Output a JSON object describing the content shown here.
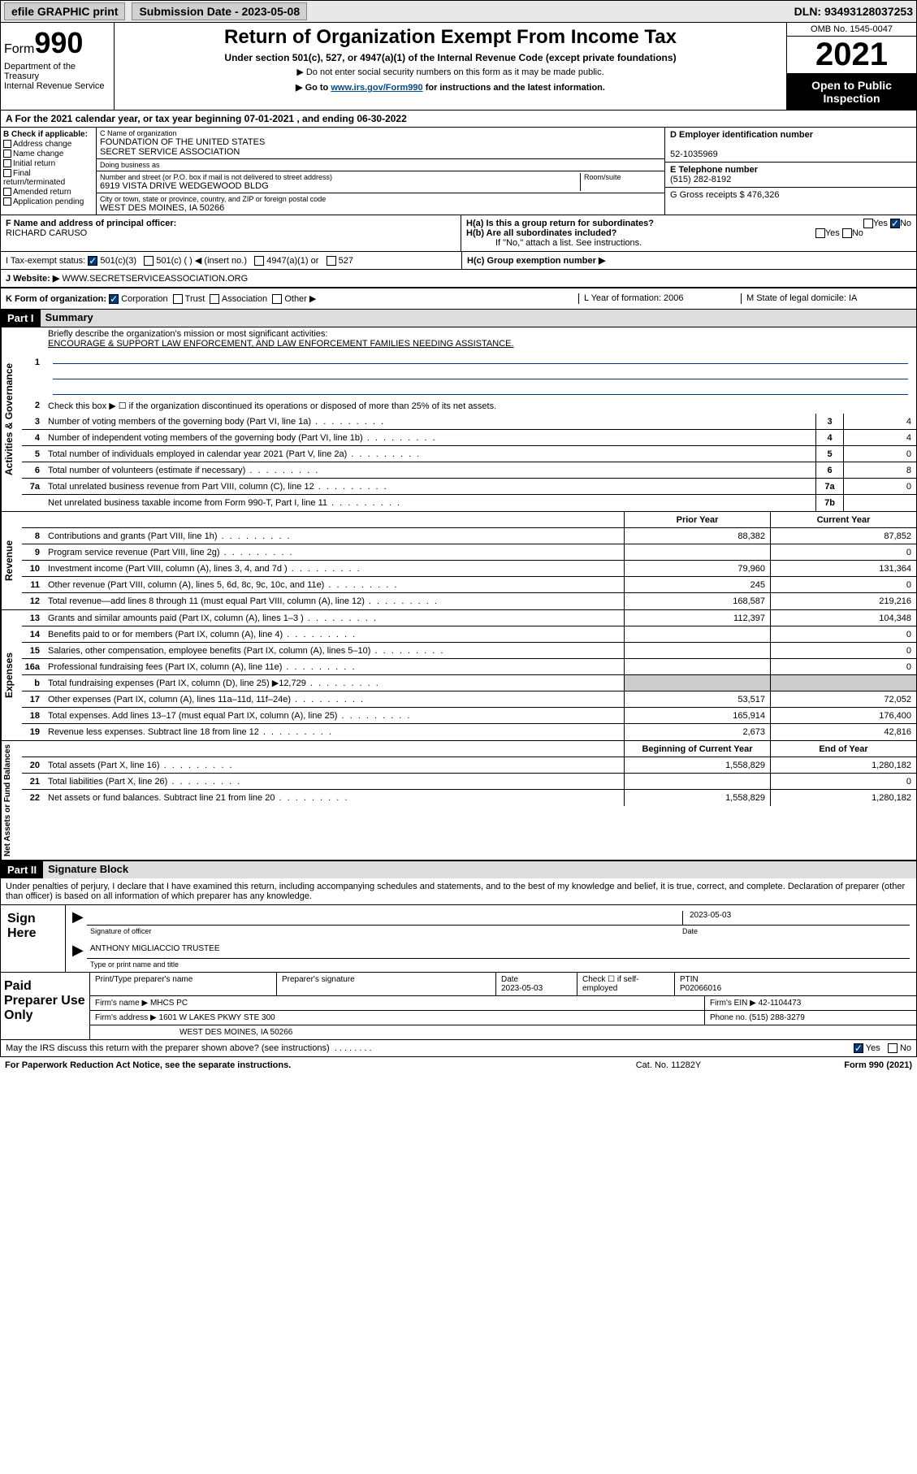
{
  "topbar": {
    "efile": "efile GRAPHIC print",
    "submission": "Submission Date - 2023-05-08",
    "dln": "DLN: 93493128037253"
  },
  "header": {
    "form_prefix": "Form",
    "form_num": "990",
    "title": "Return of Organization Exempt From Income Tax",
    "sub1": "Under section 501(c), 527, or 4947(a)(1) of the Internal Revenue Code (except private foundations)",
    "sub2": "▶ Do not enter social security numbers on this form as it may be made public.",
    "sub3_pre": "▶ Go to ",
    "sub3_link": "www.irs.gov/Form990",
    "sub3_post": " for instructions and the latest information.",
    "dept": "Department of the Treasury\nInternal Revenue Service",
    "omb": "OMB No. 1545-0047",
    "year": "2021",
    "open": "Open to Public Inspection"
  },
  "sectionA": "A For the 2021 calendar year, or tax year beginning 07-01-2021  , and ending 06-30-2022",
  "colB": {
    "title": "B Check if applicable:",
    "items": [
      "Address change",
      "Name change",
      "Initial return",
      "Final return/terminated",
      "Amended return",
      "Application pending"
    ]
  },
  "colC": {
    "name_lbl": "C Name of organization",
    "name": "FOUNDATION OF THE UNITED STATES\nSECRET SERVICE ASSOCIATION",
    "dba_lbl": "Doing business as",
    "dba": "",
    "addr_lbl": "Number and street (or P.O. box if mail is not delivered to street address)",
    "room_lbl": "Room/suite",
    "addr": "6919 VISTA DRIVE WEDGEWOOD BLDG",
    "city_lbl": "City or town, state or province, country, and ZIP or foreign postal code",
    "city": "WEST DES MOINES, IA  50266"
  },
  "colD": {
    "ein_lbl": "D Employer identification number",
    "ein": "52-1035969",
    "phone_lbl": "E Telephone number",
    "phone": "(515) 282-8192",
    "gross_lbl": "G Gross receipts $ ",
    "gross": "476,326"
  },
  "rowF": {
    "lbl": "F Name and address of principal officer:",
    "name": "RICHARD CARUSO",
    "ha": "H(a)  Is this a group return for subordinates?",
    "hb": "H(b)  Are all subordinates included?",
    "hb_note": "If \"No,\" attach a list. See instructions.",
    "hc": "H(c)  Group exemption number ▶",
    "yes": "Yes",
    "no": "No"
  },
  "rowI": {
    "lbl": "I   Tax-exempt status:",
    "opt1": "501(c)(3)",
    "opt2": "501(c) (  ) ◀ (insert no.)",
    "opt3": "4947(a)(1) or",
    "opt4": "527"
  },
  "rowJ": {
    "lbl": "J   Website: ▶ ",
    "val": "WWW.SECRETSERVICEASSOCIATION.ORG"
  },
  "rowK": {
    "lbl": "K Form of organization:",
    "opts": [
      "Corporation",
      "Trust",
      "Association",
      "Other ▶"
    ],
    "L": "L Year of formation: 2006",
    "M": "M State of legal domicile: IA"
  },
  "part1": {
    "hdr": "Part I",
    "title": "Summary"
  },
  "summary": {
    "line1_lbl": "Briefly describe the organization's mission or most significant activities:",
    "line1_val": "ENCOURAGE & SUPPORT LAW ENFORCEMENT, AND LAW ENFORCEMENT FAMILIES NEEDING ASSISTANCE.",
    "line2": "Check this box ▶ ☐ if the organization discontinued its operations or disposed of more than 25% of its net assets.",
    "rows_gov": [
      {
        "n": "3",
        "d": "Number of voting members of the governing body (Part VI, line 1a)",
        "b": "3",
        "v": "4"
      },
      {
        "n": "4",
        "d": "Number of independent voting members of the governing body (Part VI, line 1b)",
        "b": "4",
        "v": "4"
      },
      {
        "n": "5",
        "d": "Total number of individuals employed in calendar year 2021 (Part V, line 2a)",
        "b": "5",
        "v": "0"
      },
      {
        "n": "6",
        "d": "Total number of volunteers (estimate if necessary)",
        "b": "6",
        "v": "8"
      },
      {
        "n": "7a",
        "d": "Total unrelated business revenue from Part VIII, column (C), line 12",
        "b": "7a",
        "v": "0"
      },
      {
        "n": "",
        "d": "Net unrelated business taxable income from Form 990-T, Part I, line 11",
        "b": "7b",
        "v": ""
      }
    ],
    "yr_prior": "Prior Year",
    "yr_curr": "Current Year",
    "rows_rev": [
      {
        "n": "8",
        "d": "Contributions and grants (Part VIII, line 1h)",
        "p": "88,382",
        "c": "87,852"
      },
      {
        "n": "9",
        "d": "Program service revenue (Part VIII, line 2g)",
        "p": "",
        "c": "0"
      },
      {
        "n": "10",
        "d": "Investment income (Part VIII, column (A), lines 3, 4, and 7d )",
        "p": "79,960",
        "c": "131,364"
      },
      {
        "n": "11",
        "d": "Other revenue (Part VIII, column (A), lines 5, 6d, 8c, 9c, 10c, and 11e)",
        "p": "245",
        "c": "0"
      },
      {
        "n": "12",
        "d": "Total revenue—add lines 8 through 11 (must equal Part VIII, column (A), line 12)",
        "p": "168,587",
        "c": "219,216"
      }
    ],
    "rows_exp": [
      {
        "n": "13",
        "d": "Grants and similar amounts paid (Part IX, column (A), lines 1–3 )",
        "p": "112,397",
        "c": "104,348"
      },
      {
        "n": "14",
        "d": "Benefits paid to or for members (Part IX, column (A), line 4)",
        "p": "",
        "c": "0"
      },
      {
        "n": "15",
        "d": "Salaries, other compensation, employee benefits (Part IX, column (A), lines 5–10)",
        "p": "",
        "c": "0"
      },
      {
        "n": "16a",
        "d": "Professional fundraising fees (Part IX, column (A), line 11e)",
        "p": "",
        "c": "0"
      },
      {
        "n": "b",
        "d": "Total fundraising expenses (Part IX, column (D), line 25) ▶12,729",
        "p": "shade",
        "c": "shade"
      },
      {
        "n": "17",
        "d": "Other expenses (Part IX, column (A), lines 11a–11d, 11f–24e)",
        "p": "53,517",
        "c": "72,052"
      },
      {
        "n": "18",
        "d": "Total expenses. Add lines 13–17 (must equal Part IX, column (A), line 25)",
        "p": "165,914",
        "c": "176,400"
      },
      {
        "n": "19",
        "d": "Revenue less expenses. Subtract line 18 from line 12",
        "p": "2,673",
        "c": "42,816"
      }
    ],
    "yr_beg": "Beginning of Current Year",
    "yr_end": "End of Year",
    "rows_net": [
      {
        "n": "20",
        "d": "Total assets (Part X, line 16)",
        "p": "1,558,829",
        "c": "1,280,182"
      },
      {
        "n": "21",
        "d": "Total liabilities (Part X, line 26)",
        "p": "",
        "c": "0"
      },
      {
        "n": "22",
        "d": "Net assets or fund balances. Subtract line 21 from line 20",
        "p": "1,558,829",
        "c": "1,280,182"
      }
    ]
  },
  "sides": {
    "gov": "Activities & Governance",
    "rev": "Revenue",
    "exp": "Expenses",
    "net": "Net Assets or Fund Balances"
  },
  "part2": {
    "hdr": "Part II",
    "title": "Signature Block"
  },
  "sig_intro": "Under penalties of perjury, I declare that I have examined this return, including accompanying schedules and statements, and to the best of my knowledge and belief, it is true, correct, and complete. Declaration of preparer (other than officer) is based on all information of which preparer has any knowledge.",
  "sign": {
    "here": "Sign Here",
    "date": "2023-05-03",
    "sig_lbl": "Signature of officer",
    "date_lbl": "Date",
    "name": "ANTHONY MIGLIACCIO TRUSTEE",
    "name_lbl": "Type or print name and title"
  },
  "prep": {
    "title": "Paid Preparer Use Only",
    "h1": "Print/Type preparer's name",
    "h2": "Preparer's signature",
    "h3": "Date",
    "h3v": "2023-05-03",
    "h4": "Check ☐ if self-employed",
    "h5": "PTIN",
    "h5v": "P02066016",
    "firm_lbl": "Firm's name    ▶",
    "firm": "MHCS PC",
    "ein_lbl": "Firm's EIN ▶",
    "ein": "42-1104473",
    "addr_lbl": "Firm's address ▶",
    "addr1": "1601 W LAKES PKWY STE 300",
    "addr2": "WEST DES MOINES, IA  50266",
    "phone_lbl": "Phone no.",
    "phone": "(515) 288-3279"
  },
  "footer": {
    "q": "May the IRS discuss this return with the preparer shown above? (see instructions)",
    "yes": "Yes",
    "no": "No",
    "paperwork": "For Paperwork Reduction Act Notice, see the separate instructions.",
    "cat": "Cat. No. 11282Y",
    "form": "Form 990 (2021)"
  }
}
